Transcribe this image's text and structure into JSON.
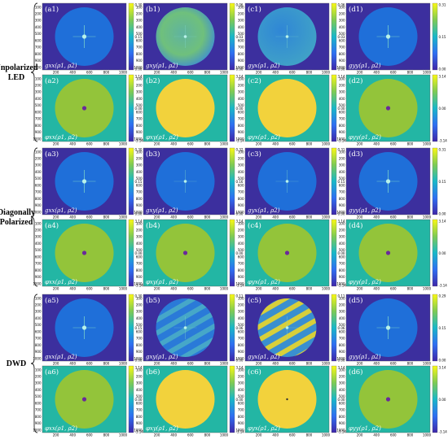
{
  "groups": [
    {
      "label_lines": [
        "Unpolarized",
        "LED"
      ]
    },
    {
      "label_lines": [
        "Diagonally",
        "Polarized"
      ]
    },
    {
      "label_lines": [
        "DWD"
      ]
    }
  ],
  "y_ticks": [
    "100",
    "200",
    "300",
    "400",
    "500",
    "600",
    "700",
    "800",
    "900",
    "1000"
  ],
  "x_ticks": [
    "200",
    "400",
    "600",
    "800",
    "1000"
  ],
  "colors": {
    "background": "#3c2f9e",
    "disk_amp": "#1f6fd9",
    "phase_background": "#23b6a4",
    "disk_phase_green": "#93c43a",
    "disk_phase_yellow": "#f2d23c",
    "center_spot": "#b8f2ea",
    "phase_center": "#6a2a9a",
    "colorbar_stops": [
      "#3e26a8",
      "#2e6ff2",
      "#18b8c8",
      "#7fcb53",
      "#f9f815"
    ]
  },
  "panels": [
    {
      "id": "a1",
      "tag": "(a1)",
      "math": "gxx(ρ1, ρ2)",
      "kind": "amp",
      "pattern": "center",
      "cb_ticks": [
        "0.30",
        "0.15",
        "0.00"
      ]
    },
    {
      "id": "b1",
      "tag": "(b1)",
      "math": "gxy(ρ1, ρ2)",
      "kind": "amp",
      "pattern": "noisy",
      "cb_ticks": [
        "0.06",
        "0.03",
        "0.00"
      ]
    },
    {
      "id": "c1",
      "tag": "(c1)",
      "math": "gyx(ρ1, ρ2)",
      "kind": "amp",
      "pattern": "noisy-dim",
      "cb_ticks": [
        "0.06",
        "0.03",
        "0.00"
      ]
    },
    {
      "id": "d1",
      "tag": "(d1)",
      "math": "gyy(ρ1, ρ2)",
      "kind": "amp",
      "pattern": "center",
      "cb_ticks": [
        "0.31",
        "0.15",
        "0.00"
      ]
    },
    {
      "id": "a2",
      "tag": "(a2)",
      "math": "φxx(ρ1, ρ2)",
      "kind": "phase",
      "pattern": "green",
      "cb_ticks": [
        "3.14",
        "0.00",
        "-3.14"
      ]
    },
    {
      "id": "b2",
      "tag": "(b2)",
      "math": "φxy(ρ1, ρ2)",
      "kind": "phase",
      "pattern": "yellow",
      "cb_ticks": [
        "3.14",
        "0.00",
        "-3.14"
      ]
    },
    {
      "id": "c2",
      "tag": "(c2)",
      "math": "φyx(ρ1, ρ2)",
      "kind": "phase",
      "pattern": "yellow",
      "cb_ticks": [
        "3.14",
        "0.00",
        "-3.14"
      ]
    },
    {
      "id": "d2",
      "tag": "(d2)",
      "math": "φyy(ρ1, ρ2)",
      "kind": "phase",
      "pattern": "green",
      "cb_ticks": [
        "3.14",
        "0.00",
        "-3.14"
      ]
    },
    {
      "id": "a3",
      "tag": "(a3)",
      "math": "gxx(ρ1, ρ2)",
      "kind": "amp",
      "pattern": "center",
      "cb_ticks": [
        "0.30",
        "0.15",
        "0.00"
      ]
    },
    {
      "id": "b3",
      "tag": "(b3)",
      "math": "gxy(ρ1, ρ2)",
      "kind": "amp",
      "pattern": "center-dim",
      "cb_ticks": [
        "0.32",
        "0.16",
        "0.00"
      ]
    },
    {
      "id": "c3",
      "tag": "(c3)",
      "math": "gyx(ρ1, ρ2)",
      "kind": "amp",
      "pattern": "center-dim",
      "cb_ticks": [
        "0.31",
        "0.15",
        "0.00"
      ]
    },
    {
      "id": "d3",
      "tag": "(d3)",
      "math": "gyy(ρ1, ρ2)",
      "kind": "amp",
      "pattern": "center",
      "cb_ticks": [
        "0.31",
        "0.15",
        "0.00"
      ]
    },
    {
      "id": "a4",
      "tag": "(a4)",
      "math": "φxx(ρ1, ρ2)",
      "kind": "phase",
      "pattern": "green",
      "cb_ticks": [
        "3.14",
        "0.00",
        "-3.14"
      ]
    },
    {
      "id": "b4",
      "tag": "(b4)",
      "math": "φxy(ρ1, ρ2)",
      "kind": "phase",
      "pattern": "green",
      "cb_ticks": [
        "3.14",
        "0.00",
        "-3.14"
      ]
    },
    {
      "id": "c4",
      "tag": "(c4)",
      "math": "φyx(ρ1, ρ2)",
      "kind": "phase",
      "pattern": "green",
      "cb_ticks": [
        "3.14",
        "0.00",
        "-3.14"
      ]
    },
    {
      "id": "d4",
      "tag": "(d4)",
      "math": "φyy(ρ1, ρ2)",
      "kind": "phase",
      "pattern": "green",
      "cb_ticks": [
        "3.14",
        "0.00",
        "-3.14"
      ]
    },
    {
      "id": "a5",
      "tag": "(a5)",
      "math": "gxx(ρ1, ρ2)",
      "kind": "amp",
      "pattern": "center",
      "cb_ticks": [
        "0.30",
        "0.15",
        "0.00"
      ]
    },
    {
      "id": "b5",
      "tag": "(b5)",
      "math": "gxy(ρ1, ρ2)",
      "kind": "amp",
      "pattern": "stripes",
      "cb_ticks": [
        "0.11",
        "0.06",
        "0.00"
      ]
    },
    {
      "id": "c5",
      "tag": "(c5)",
      "math": "gyx(ρ1, ρ2)",
      "kind": "amp",
      "pattern": "stripes-strong",
      "cb_ticks": [
        "0.11",
        "0.06",
        "0.00"
      ]
    },
    {
      "id": "d5",
      "tag": "(d5)",
      "math": "gyy(ρ1, ρ2)",
      "kind": "amp",
      "pattern": "center",
      "cb_ticks": [
        "0.29",
        "0.15",
        "0.00"
      ]
    },
    {
      "id": "a6",
      "tag": "(a6)",
      "math": "φxx(ρ1, ρ2)",
      "kind": "phase",
      "pattern": "green",
      "cb_ticks": [
        "3.14",
        "0.00",
        "-3.14"
      ]
    },
    {
      "id": "b6",
      "tag": "(b6)",
      "math": "φxy(ρ1, ρ2)",
      "kind": "phase",
      "pattern": "yellow",
      "cb_ticks": [
        "3.14",
        "0.00",
        "-3.14"
      ]
    },
    {
      "id": "c6",
      "tag": "(c6)",
      "math": "φyx(ρ1, ρ2)",
      "kind": "phase",
      "pattern": "yellow-dot",
      "cb_ticks": [
        "3.14",
        "0.00",
        "-3.14"
      ]
    },
    {
      "id": "d6",
      "tag": "(d6)",
      "math": "φyy(ρ1, ρ2)",
      "kind": "phase",
      "pattern": "green",
      "cb_ticks": [
        "3.14",
        "0.00",
        "-3.14"
      ]
    }
  ]
}
